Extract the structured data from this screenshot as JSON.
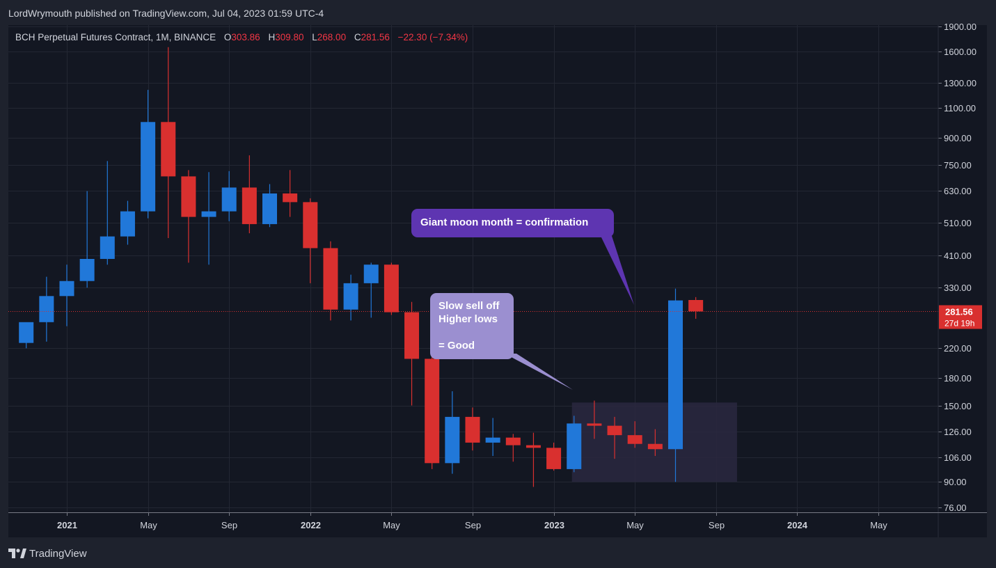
{
  "header": {
    "published": "LordWrymouth published on TradingView.com, Jul 04, 2023 01:59 UTC-4"
  },
  "legend": {
    "title": "BCH Perpetual Futures Contract, 1M, BINANCE",
    "o_key": "O",
    "o_val": "303.86",
    "h_key": "H",
    "h_val": "309.80",
    "l_key": "L",
    "l_val": "268.00",
    "c_key": "C",
    "c_val": "281.56",
    "change": "−22.30 (−7.34%)"
  },
  "callouts": {
    "moon": "Giant moon month = confirmation",
    "slow_line1": "Slow sell off",
    "slow_line2": "Higher lows",
    "slow_line3": "= Good"
  },
  "footer": {
    "brand": "TradingView",
    "logo_icon": "tradingview-logo-icon"
  },
  "colors": {
    "up": "#2178d9",
    "down": "#d9302f",
    "background": "#131722",
    "frame": "#1e222d",
    "grid": "#232733",
    "moon_callout": "#5e35b1",
    "slow_callout": "#9b8fd0",
    "zone": "#2a2840"
  },
  "chart_data": {
    "type": "candlestick",
    "symbol": "BCH Perpetual Futures Contract",
    "interval": "1M",
    "exchange": "BINANCE",
    "y_scale": "log",
    "ylim": [
      72,
      1950
    ],
    "y_ticks": [
      {
        "v": 1900,
        "label": "1900.00"
      },
      {
        "v": 1600,
        "label": "1600.00"
      },
      {
        "v": 1300,
        "label": "1300.00"
      },
      {
        "v": 1100,
        "label": "1100.00"
      },
      {
        "v": 900,
        "label": "900.00"
      },
      {
        "v": 750,
        "label": "750.00"
      },
      {
        "v": 630,
        "label": "630.00"
      },
      {
        "v": 510,
        "label": "510.00"
      },
      {
        "v": 410,
        "label": "410.00"
      },
      {
        "v": 330,
        "label": "330.00"
      },
      {
        "v": 220,
        "label": "220.00"
      },
      {
        "v": 180,
        "label": "180.00"
      },
      {
        "v": 150,
        "label": "150.00"
      },
      {
        "v": 126,
        "label": "126.00"
      },
      {
        "v": 106,
        "label": "106.00"
      },
      {
        "v": 90,
        "label": "90.00"
      },
      {
        "v": 76,
        "label": "76.00"
      }
    ],
    "x_ticks": [
      {
        "date": "2021-01",
        "label": "2021",
        "bold": true
      },
      {
        "date": "2021-05",
        "label": "May",
        "bold": false
      },
      {
        "date": "2021-09",
        "label": "Sep",
        "bold": false
      },
      {
        "date": "2022-01",
        "label": "2022",
        "bold": true
      },
      {
        "date": "2022-05",
        "label": "May",
        "bold": false
      },
      {
        "date": "2022-09",
        "label": "Sep",
        "bold": false
      },
      {
        "date": "2023-01",
        "label": "2023",
        "bold": true
      },
      {
        "date": "2023-05",
        "label": "May",
        "bold": false
      },
      {
        "date": "2023-09",
        "label": "Sep",
        "bold": false
      },
      {
        "date": "2024-01",
        "label": "2024",
        "bold": true
      },
      {
        "date": "2024-05",
        "label": "May",
        "bold": false
      }
    ],
    "candles": [
      {
        "date": "2020-11",
        "o": 228,
        "h": 250,
        "l": 220,
        "c": 262
      },
      {
        "date": "2020-12",
        "o": 262,
        "h": 355,
        "l": 230,
        "c": 312
      },
      {
        "date": "2021-01",
        "o": 312,
        "h": 385,
        "l": 255,
        "c": 345
      },
      {
        "date": "2021-02",
        "o": 345,
        "h": 630,
        "l": 330,
        "c": 400
      },
      {
        "date": "2021-03",
        "o": 400,
        "h": 770,
        "l": 385,
        "c": 465
      },
      {
        "date": "2021-04",
        "o": 465,
        "h": 590,
        "l": 440,
        "c": 550
      },
      {
        "date": "2021-05",
        "o": 550,
        "h": 1240,
        "l": 525,
        "c": 1000
      },
      {
        "date": "2021-06",
        "o": 1000,
        "h": 1650,
        "l": 460,
        "c": 695
      },
      {
        "date": "2021-07",
        "o": 695,
        "h": 725,
        "l": 390,
        "c": 530
      },
      {
        "date": "2021-08",
        "o": 530,
        "h": 715,
        "l": 385,
        "c": 550
      },
      {
        "date": "2021-09",
        "o": 550,
        "h": 720,
        "l": 515,
        "c": 645
      },
      {
        "date": "2021-10",
        "o": 645,
        "h": 800,
        "l": 475,
        "c": 505
      },
      {
        "date": "2021-11",
        "o": 505,
        "h": 660,
        "l": 495,
        "c": 620
      },
      {
        "date": "2021-12",
        "o": 620,
        "h": 725,
        "l": 530,
        "c": 585
      },
      {
        "date": "2022-01",
        "o": 585,
        "h": 600,
        "l": 340,
        "c": 430
      },
      {
        "date": "2022-02",
        "o": 430,
        "h": 450,
        "l": 265,
        "c": 285
      },
      {
        "date": "2022-03",
        "o": 285,
        "h": 360,
        "l": 265,
        "c": 340
      },
      {
        "date": "2022-04",
        "o": 340,
        "h": 390,
        "l": 270,
        "c": 385
      },
      {
        "date": "2022-05",
        "o": 385,
        "h": 390,
        "l": 275,
        "c": 280
      },
      {
        "date": "2022-06",
        "o": 280,
        "h": 300,
        "l": 150,
        "c": 205
      },
      {
        "date": "2022-07",
        "o": 205,
        "h": 215,
        "l": 98,
        "c": 102
      },
      {
        "date": "2022-08",
        "o": 102,
        "h": 165,
        "l": 95,
        "c": 139
      },
      {
        "date": "2022-09",
        "o": 139,
        "h": 148,
        "l": 111,
        "c": 117
      },
      {
        "date": "2022-10",
        "o": 117,
        "h": 138,
        "l": 107,
        "c": 121
      },
      {
        "date": "2022-11",
        "o": 121,
        "h": 124,
        "l": 103,
        "c": 115
      },
      {
        "date": "2022-12",
        "o": 115,
        "h": 125,
        "l": 87,
        "c": 113
      },
      {
        "date": "2023-01",
        "o": 113,
        "h": 117,
        "l": 97,
        "c": 98
      },
      {
        "date": "2023-02",
        "o": 98,
        "h": 140,
        "l": 96,
        "c": 133
      },
      {
        "date": "2023-03",
        "o": 133,
        "h": 155,
        "l": 120,
        "c": 131
      },
      {
        "date": "2023-04",
        "o": 131,
        "h": 139,
        "l": 105,
        "c": 123
      },
      {
        "date": "2023-05",
        "o": 123,
        "h": 135,
        "l": 113,
        "c": 116
      },
      {
        "date": "2023-06",
        "o": 116,
        "h": 128,
        "l": 107,
        "c": 112
      },
      {
        "date": "2023-07",
        "o": 112,
        "h": 328,
        "l": 90,
        "c": 303
      },
      {
        "date": "2023-08",
        "o": 303.86,
        "h": 309.8,
        "l": 268,
        "c": 281.56
      }
    ],
    "last_price": {
      "value": 281.56,
      "label": "281.56",
      "countdown": "27d 19h"
    },
    "zone": {
      "from": "2023-02",
      "to": "2023-10",
      "low": 90,
      "high": 153
    }
  }
}
